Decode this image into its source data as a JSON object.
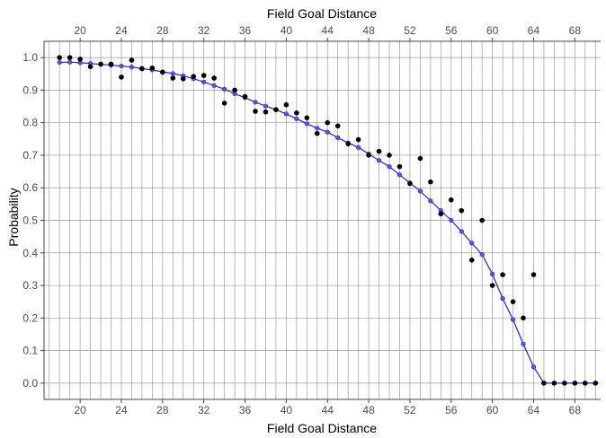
{
  "chart_data": {
    "type": "scatter",
    "title": "",
    "xlabel": "Field Goal Distance",
    "x2label": "Field Goal Distance",
    "ylabel": "Probability",
    "xlim": [
      16.5,
      70.5
    ],
    "ylim": [
      -0.05,
      1.05
    ],
    "x_ticks": [
      20,
      24,
      28,
      32,
      36,
      40,
      44,
      48,
      52,
      56,
      60,
      64,
      68
    ],
    "y_ticks": [
      0.0,
      0.1,
      0.2,
      0.3,
      0.4,
      0.5,
      0.6,
      0.7,
      0.8,
      0.9,
      1.0
    ],
    "y_tick_labels": [
      "0.0",
      "0.1",
      "0.2",
      "0.3",
      "0.4",
      "0.5",
      "0.6",
      "0.7",
      "0.8",
      "0.9",
      "1.0"
    ],
    "grid": true,
    "legend": "none",
    "series": [
      {
        "kind": "points",
        "color": "#000000",
        "x": [
          18,
          19,
          20,
          21,
          22,
          23,
          24,
          25,
          26,
          27,
          28,
          29,
          30,
          31,
          32,
          33,
          34,
          35,
          36,
          37,
          38,
          39,
          40,
          41,
          42,
          43,
          44,
          45,
          46,
          47,
          48,
          49,
          50,
          51,
          52,
          53,
          54,
          55,
          56,
          57,
          58,
          59,
          60,
          61,
          62,
          63,
          64,
          65,
          66,
          67,
          68,
          69,
          70
        ],
        "y": [
          1.0,
          1.0,
          0.995,
          0.972,
          0.98,
          0.98,
          0.94,
          0.992,
          0.966,
          0.968,
          0.955,
          0.937,
          0.935,
          0.942,
          0.945,
          0.937,
          0.86,
          0.9,
          0.88,
          0.835,
          0.833,
          0.84,
          0.855,
          0.83,
          0.815,
          0.767,
          0.8,
          0.79,
          0.735,
          0.748,
          0.7,
          0.712,
          0.7,
          0.665,
          0.613,
          0.69,
          0.618,
          0.52,
          0.563,
          0.53,
          0.378,
          0.5,
          0.3,
          0.333,
          0.25,
          0.2,
          0.333,
          0.0,
          0.0,
          0.0,
          0.0,
          0.0,
          0.0
        ]
      },
      {
        "kind": "fitted-line",
        "color": "#2222cc",
        "x": [
          18,
          19,
          20,
          21,
          22,
          23,
          24,
          25,
          26,
          27,
          28,
          29,
          30,
          31,
          32,
          33,
          34,
          35,
          36,
          37,
          38,
          39,
          40,
          41,
          42,
          43,
          44,
          45,
          46,
          47,
          48,
          49,
          50,
          51,
          52,
          53,
          54,
          55,
          56,
          57,
          58,
          59,
          60,
          61,
          62,
          63,
          64,
          65,
          66,
          67,
          68,
          69,
          70
        ],
        "y": [
          0.985,
          0.986,
          0.984,
          0.982,
          0.979,
          0.977,
          0.974,
          0.971,
          0.966,
          0.962,
          0.956,
          0.951,
          0.944,
          0.935,
          0.925,
          0.914,
          0.903,
          0.889,
          0.877,
          0.863,
          0.851,
          0.84,
          0.827,
          0.812,
          0.797,
          0.783,
          0.771,
          0.754,
          0.738,
          0.724,
          0.704,
          0.684,
          0.665,
          0.64,
          0.615,
          0.59,
          0.56,
          0.53,
          0.5,
          0.466,
          0.43,
          0.395,
          0.335,
          0.26,
          0.195,
          0.12,
          0.05,
          0.0,
          0.0,
          0.0,
          0.0,
          0.0,
          0.0
        ]
      }
    ]
  }
}
